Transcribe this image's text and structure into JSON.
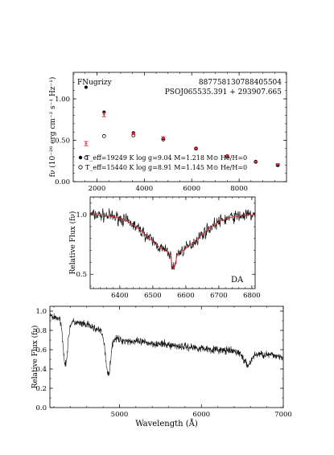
{
  "chart_data": [
    {
      "type": "scatter",
      "panel_label": "FNugrizy",
      "object_id": "887758130788405504",
      "object_name": "PSOJ065535.391 + 293907.665",
      "ylabel": "fν (10⁻²⁶ erg cm⁻² s⁻¹ Hz⁻¹)",
      "xlim": [
        1000,
        10000
      ],
      "ylim": [
        0,
        1.32
      ],
      "xticks": [
        "2000",
        "4000",
        "6000",
        "8000"
      ],
      "yticks": [
        "0.00",
        "0.50",
        "1.00"
      ],
      "legend": [
        "T_eff=19249 K  log g=9.04  M=1.218 M⊙  He/H=0",
        "T_eff=15440 K  log g=8.91  M=1.145 M⊙  He/H=0"
      ],
      "series": [
        {
          "name": "T_eff=19249 K  log g=9.04  M=1.218 M⊙  He/H=0",
          "marker": "filled-circle",
          "x": [
            1540,
            2300,
            3540,
            4800,
            6180,
            7500,
            8700,
            9630
          ],
          "y": [
            1.14,
            0.84,
            0.59,
            0.52,
            0.4,
            0.31,
            0.24,
            0.2
          ]
        },
        {
          "name": "T_eff=15440 K  log g=8.91  M=1.145 M⊙  He/H=0",
          "marker": "open-circle",
          "x": [
            1540,
            2300,
            3540,
            4800,
            6180,
            7500,
            8700,
            9630
          ],
          "y": [
            0.29,
            0.55,
            0.56,
            0.51,
            0.4,
            0.3,
            0.24,
            0.2
          ]
        },
        {
          "name": "",
          "marker": "errorbar",
          "color": "#e0303b",
          "x": [
            1540,
            2300,
            3540,
            4800,
            6180,
            7500,
            8700,
            9630
          ],
          "y": [
            0.46,
            0.81,
            0.58,
            0.53,
            0.4,
            0.31,
            0.24,
            0.21
          ],
          "err": [
            0.025,
            0.025,
            0.012,
            0.012,
            0.008,
            0.008,
            0.008,
            0.008
          ]
        }
      ]
    },
    {
      "type": "line",
      "class_label": "DA",
      "xlabel": "",
      "ylabel": "Relative Flux (fν)",
      "xlim": [
        6310,
        6810
      ],
      "ylim": [
        0.38,
        1.15
      ],
      "xticks": [
        "6400",
        "6500",
        "6600",
        "6700",
        "6800"
      ],
      "yticks": [
        "0.5",
        "1.0"
      ],
      "line_profile": {
        "continuum": 1.0,
        "center": 6563,
        "depth": 0.45,
        "narrow_width": 6,
        "broad_depth": 0.32,
        "broad_width": 75
      },
      "model_color": "#e0303b"
    },
    {
      "type": "line",
      "xlabel": "Wavelength (Å)",
      "ylabel": "Relative Flux (fν)",
      "xlim": [
        4150,
        7000
      ],
      "ylim": [
        0.0,
        1.05
      ],
      "xticks": [
        "5000",
        "6000",
        "7000"
      ],
      "yticks": [
        "0.0",
        "0.2",
        "0.4",
        "0.6",
        "0.8",
        "1.0"
      ],
      "absorption_lines": [
        4340,
        4861,
        6563
      ]
    }
  ]
}
